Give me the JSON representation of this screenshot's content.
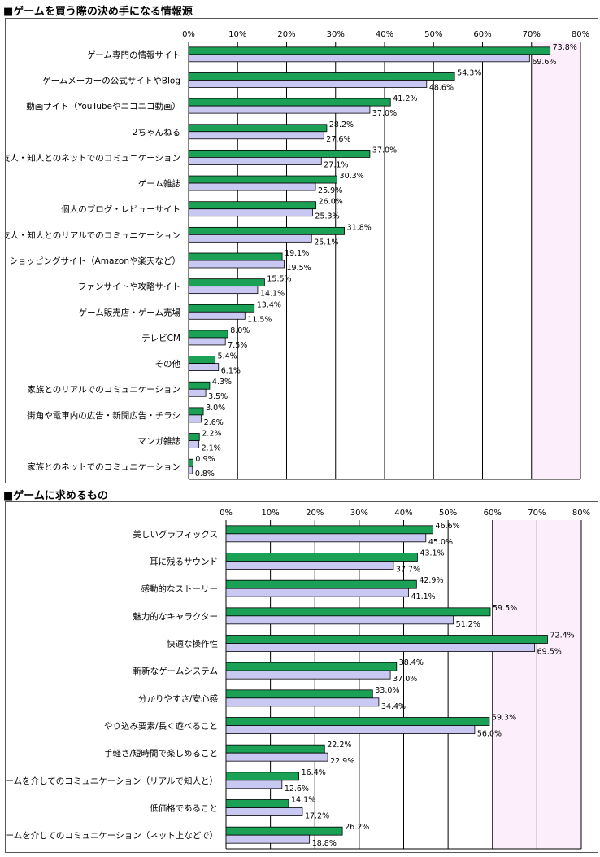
{
  "chart_data": [
    {
      "type": "bar",
      "title": "■ゲームを買う際の決め手になる情報源",
      "categories": [
        "ゲーム専門の情報サイト",
        "ゲームメーカーの公式サイトやBlog",
        "動画サイト（YouTubeやニコニコ動画）",
        "2ちゃんねる",
        "友人・知人とのネットでのコミュニケーション",
        "ゲーム雑誌",
        "個人のブログ・レビューサイト",
        "友人・知人とのリアルでのコミュニケーション",
        "ショッピングサイト（Amazonや楽天など）",
        "ファンサイトや攻略サイト",
        "ゲーム販売店・ゲーム売場",
        "テレビCM",
        "その他",
        "家族とのリアルでのコミュニケーション",
        "街角や電車内の広告・新聞広告・チラシ",
        "マンガ雑誌",
        "家族とのネットでのコミュニケーション"
      ],
      "series": [
        {
          "name": "series-green",
          "color": "#1aa155",
          "values": [
            73.8,
            54.3,
            41.2,
            28.2,
            37.0,
            30.3,
            26.0,
            31.8,
            19.1,
            15.5,
            13.4,
            8.0,
            5.4,
            4.3,
            3.0,
            2.2,
            0.9
          ],
          "labels": [
            "73.8%",
            "54.3%",
            "41.2%",
            "28.2%",
            "37.0%",
            "30.3%",
            "26.0%",
            "31.8%",
            "19.1%",
            "15.5%",
            "13.4%",
            "8.0%",
            "5.4%",
            "4.3%",
            "3.0%",
            "2.2%",
            "0.9%"
          ]
        },
        {
          "name": "series-lavender",
          "color": "#c8c8f2",
          "values": [
            69.6,
            48.6,
            37.0,
            27.6,
            27.1,
            25.9,
            25.3,
            25.1,
            19.5,
            14.1,
            11.5,
            7.5,
            6.1,
            3.5,
            2.6,
            2.1,
            0.8
          ],
          "labels": [
            "69.6%",
            "48.6%",
            "37.0%",
            "27.6%",
            "27.1%",
            "25.9%",
            "25.3%",
            "25.1%",
            "19.5%",
            "14.1%",
            "11.5%",
            "7.5%",
            "6.1%",
            "3.5%",
            "2.6%",
            "2.1%",
            "0.8%"
          ]
        }
      ],
      "xlim": [
        0,
        80
      ],
      "ticks": [
        "0%",
        "10%",
        "20%",
        "30%",
        "40%",
        "50%",
        "60%",
        "70%",
        "80%"
      ],
      "shaded_band": [
        70,
        80
      ],
      "gridlines": true
    },
    {
      "type": "bar",
      "title": "■ゲームに求めるもの",
      "categories": [
        "美しいグラフィックス",
        "耳に残るサウンド",
        "感動的なストーリー",
        "魅力的なキャラクター",
        "快適な操作性",
        "斬新なゲームシステム",
        "分かりやすさ/安心感",
        "やり込み要素/長く遊べること",
        "手軽さ/短時間で楽しめること",
        "ゲームを介してのコミュニケーション（リアルで知人と）",
        "低価格であること",
        "ゲームを介してのコミュニケーション（ネット上などで）"
      ],
      "series": [
        {
          "name": "series-green",
          "color": "#1aa155",
          "values": [
            46.6,
            43.1,
            42.9,
            59.5,
            72.4,
            38.4,
            33.0,
            59.3,
            22.2,
            16.4,
            14.1,
            26.2
          ],
          "labels": [
            "46.6%",
            "43.1%",
            "42.9%",
            "59.5%",
            "72.4%",
            "38.4%",
            "33.0%",
            "59.3%",
            "22.2%",
            "16.4%",
            "14.1%",
            "26.2%"
          ]
        },
        {
          "name": "series-lavender",
          "color": "#c8c8f2",
          "values": [
            45.0,
            37.7,
            41.1,
            51.2,
            69.5,
            37.0,
            34.4,
            56.0,
            22.9,
            12.6,
            17.2,
            18.8
          ],
          "labels": [
            "45.0%",
            "37.7%",
            "41.1%",
            "51.2%",
            "69.5%",
            "37.0%",
            "34.4%",
            "56.0%",
            "22.9%",
            "12.6%",
            "17.2%",
            "18.8%"
          ]
        }
      ],
      "xlim": [
        0,
        80
      ],
      "ticks": [
        "0%",
        "10%",
        "20%",
        "30%",
        "40%",
        "50%",
        "60%",
        "70%",
        "80%"
      ],
      "shaded_band": [
        60,
        80
      ],
      "gridlines": true
    }
  ]
}
